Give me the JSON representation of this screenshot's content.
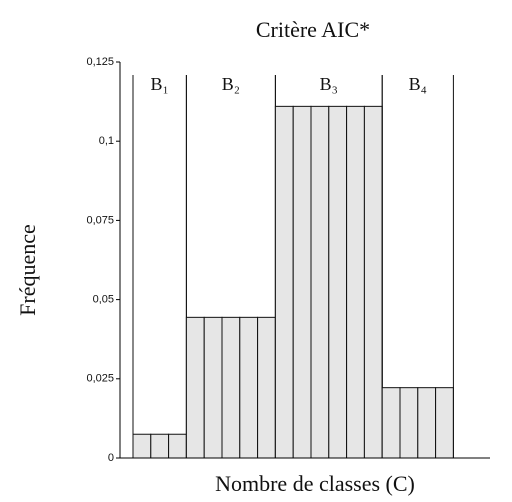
{
  "chart_data": {
    "type": "bar",
    "title": "Critère AIC*",
    "ylabel": "Fréquence",
    "xlabel": "Nombre de classes (C)",
    "groups": [
      {
        "name": "B₁",
        "values": [
          0.0075,
          0.0075,
          0.0075
        ]
      },
      {
        "name": "B₂",
        "values": [
          0.0444,
          0.0444,
          0.0444,
          0.0444,
          0.0444
        ]
      },
      {
        "name": "B₃",
        "values": [
          0.111,
          0.111,
          0.111,
          0.111,
          0.111,
          0.111
        ]
      },
      {
        "name": "B₄",
        "values": [
          0.0222,
          0.0222,
          0.0222,
          0.0222
        ]
      }
    ],
    "color": "#e6e6e6",
    "ylim": [
      0,
      0.125
    ],
    "yticks": [
      0,
      {
        "value": 0.025,
        "label": "0,025"
      },
      {
        "value": 0.05,
        "label": "0,05"
      },
      {
        "value": 0.075,
        "label": "0,075"
      },
      {
        "value": 0.1,
        "label": "0,1"
      },
      {
        "value": 0.125,
        "label": "0,125"
      }
    ]
  }
}
